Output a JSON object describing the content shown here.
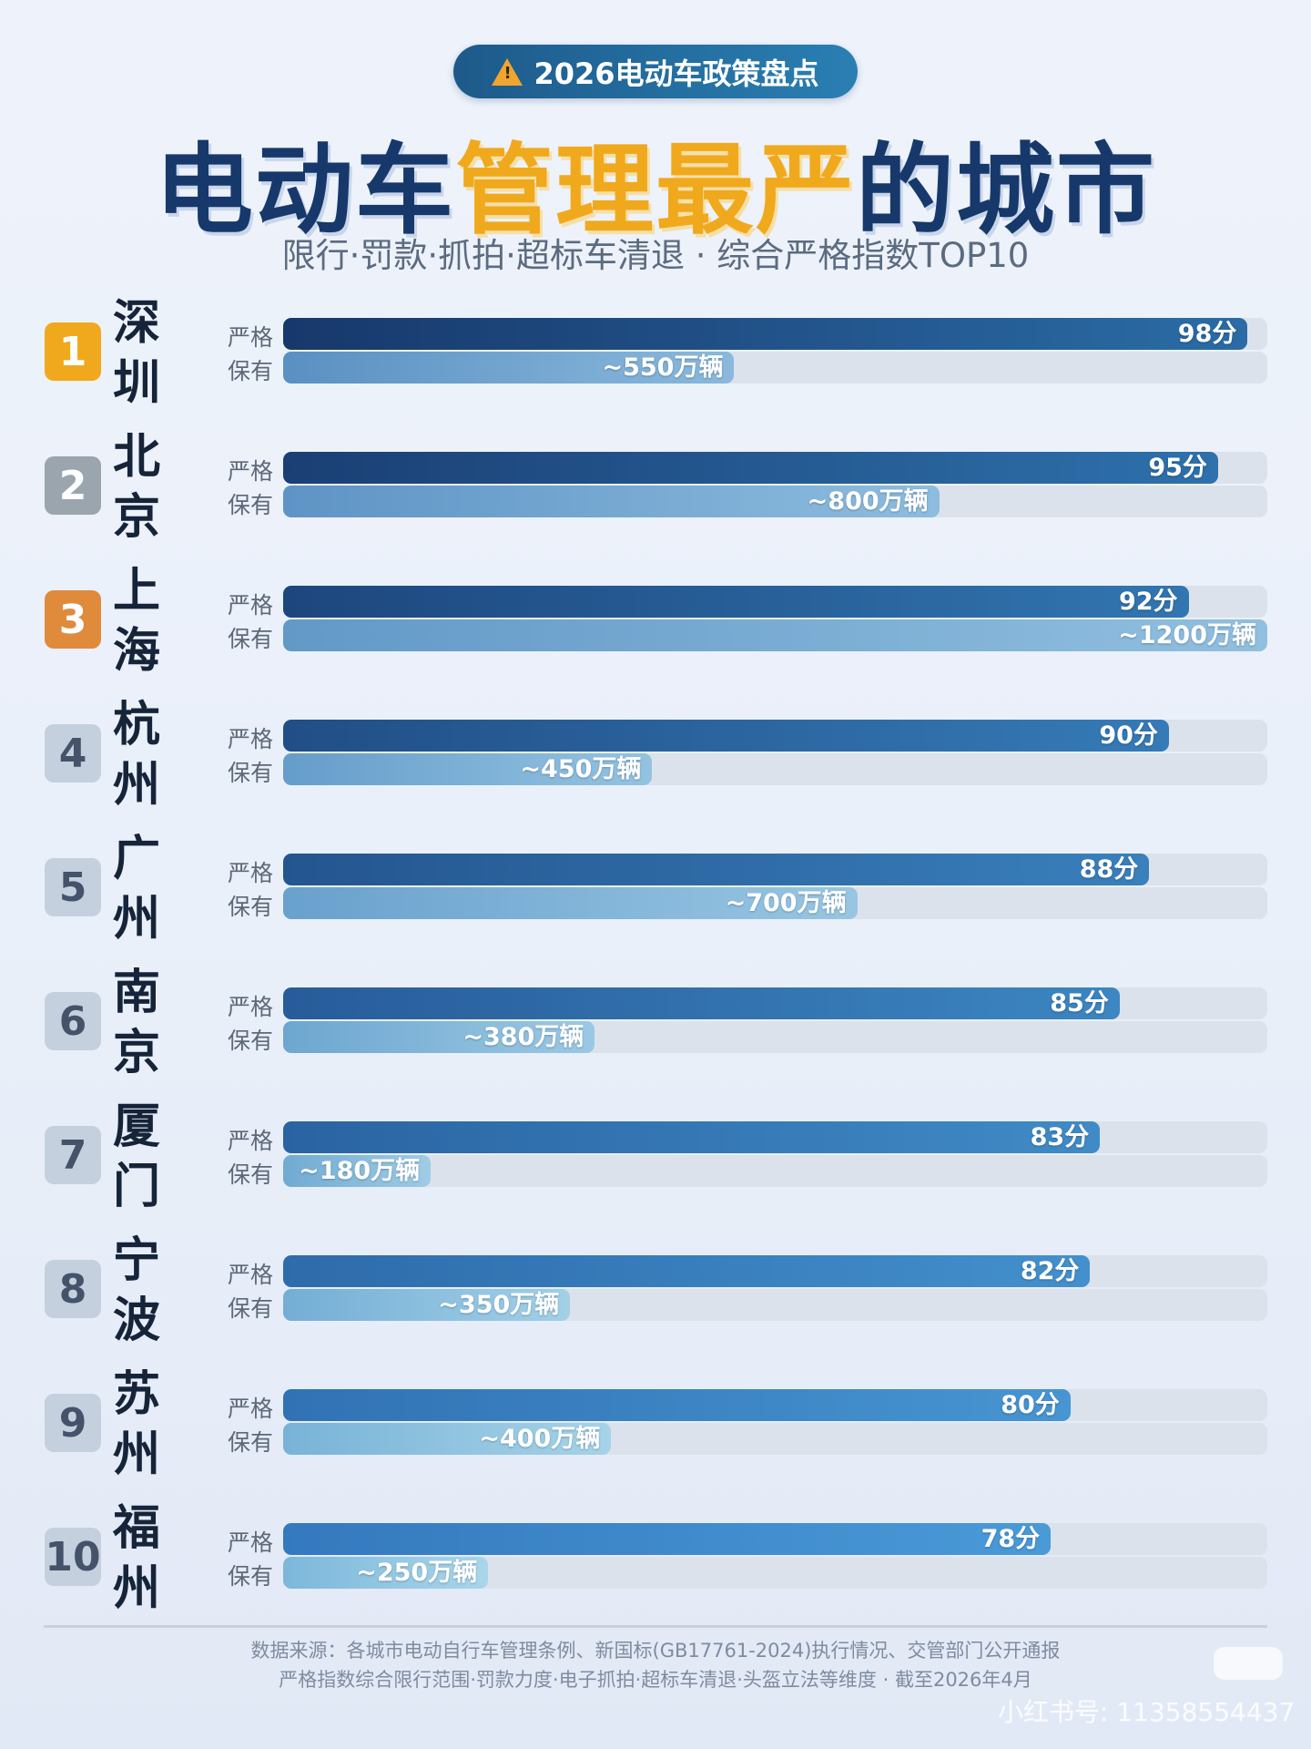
{
  "header": {
    "badge_icon": "warning-triangle-icon",
    "badge_text": "2026电动车政策盘点",
    "title_part1": "电动车",
    "title_highlight": "管理最严",
    "title_part2": "的城市",
    "subtitle": "限行·罚款·抓拍·超标车清退 · 综合严格指数TOP10",
    "colors": {
      "title": "#17386b",
      "highlight": "#f0a91c"
    }
  },
  "chart_data": {
    "type": "bar",
    "orientation": "horizontal",
    "row_labels": {
      "score": "严格",
      "vehicles": "保有"
    },
    "categories": [
      "深圳",
      "北京",
      "上海",
      "杭州",
      "广州",
      "南京",
      "厦门",
      "宁波",
      "苏州",
      "福州"
    ],
    "ranks": [
      1,
      2,
      3,
      4,
      5,
      6,
      7,
      8,
      9,
      10
    ],
    "series": [
      {
        "key": "score",
        "values": [
          98,
          95,
          92,
          90,
          88,
          85,
          83,
          82,
          80,
          78
        ],
        "labels": [
          "98分",
          "95分",
          "92分",
          "90分",
          "88分",
          "85分",
          "83分",
          "82分",
          "80分",
          "78分"
        ],
        "max": 100
      },
      {
        "key": "vehicles",
        "values": [
          550,
          800,
          1200,
          450,
          700,
          380,
          180,
          350,
          400,
          250
        ],
        "labels": [
          "~550万辆",
          "~800万辆",
          "~1200万辆",
          "~450万辆",
          "~700万辆",
          "~380万辆",
          "~180万辆",
          "~350万辆",
          "~400万辆",
          "~250万辆"
        ],
        "max": 1200
      }
    ],
    "rank_colors": {
      "1": "#f0a91c",
      "2": "#9aa5ae",
      "3": "#e08a3c",
      "other": "#c5d0de"
    }
  },
  "footer": {
    "line1": "数据来源：各城市电动自行车管理条例、新国标(GB17761-2024)执行情况、交管部门公开通报",
    "line2": "严格指数综合限行范围·罚款力度·电子抓拍·超标车清退·头盔立法等维度 · 截至2026年4月",
    "watermark_logo": "小红书",
    "watermark_id": "小红书号: 11358554437"
  }
}
